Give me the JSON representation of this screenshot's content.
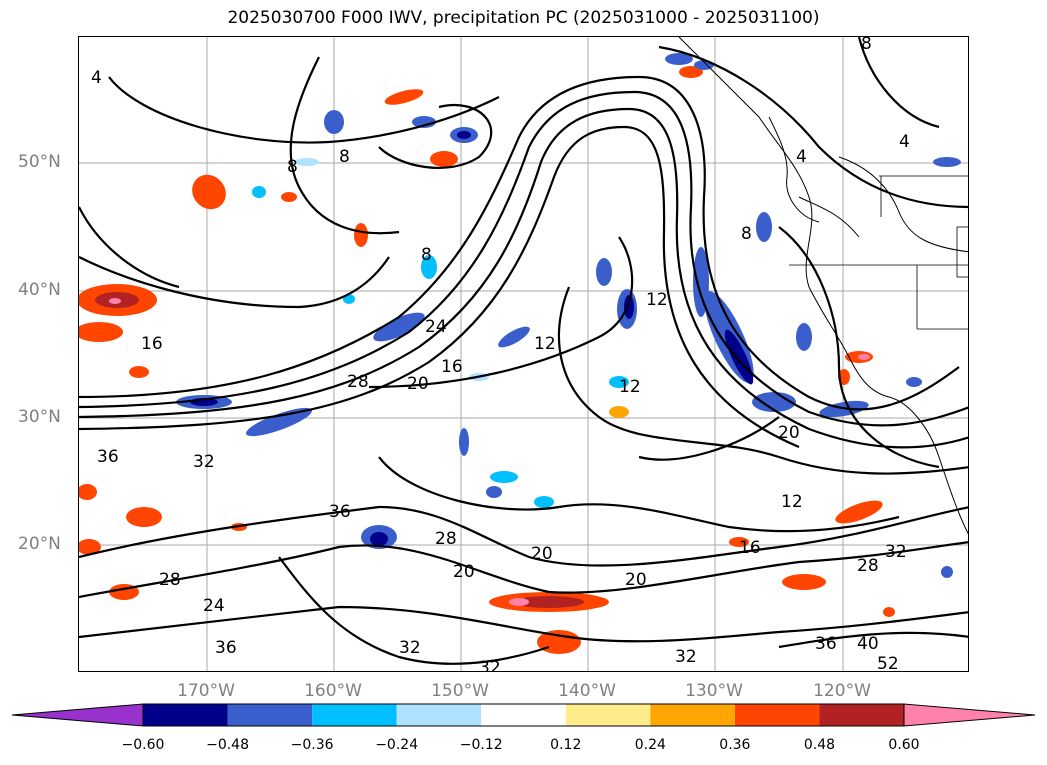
{
  "title": "2025030700 F000 IWV, precipitation PC (2025031000 - 2025031100)",
  "lat_labels": [
    "50°N",
    "40°N",
    "30°N",
    "20°N"
  ],
  "lon_labels": [
    "170°W",
    "160°W",
    "150°W",
    "140°W",
    "130°W",
    "120°W"
  ],
  "contour_labels": [
    "4",
    "8",
    "12",
    "16",
    "20",
    "24",
    "28",
    "32",
    "36",
    "40",
    "52"
  ],
  "colorbar": {
    "ticks": [
      "−0.60",
      "−0.48",
      "−0.36",
      "−0.24",
      "−0.12",
      "0.12",
      "0.24",
      "0.36",
      "0.48",
      "0.60"
    ],
    "colors": [
      "#9932cc",
      "#00008b",
      "#3a5fcd",
      "#00bfff",
      "#b0e2ff",
      "#ffffff",
      "#ffec8b",
      "#ffa500",
      "#ff4500",
      "#b22222",
      "#ff82ab",
      "#ff82ab"
    ],
    "extend": "both"
  },
  "map_features": [
    "coastlines",
    "state-borders",
    "gridlines"
  ]
}
